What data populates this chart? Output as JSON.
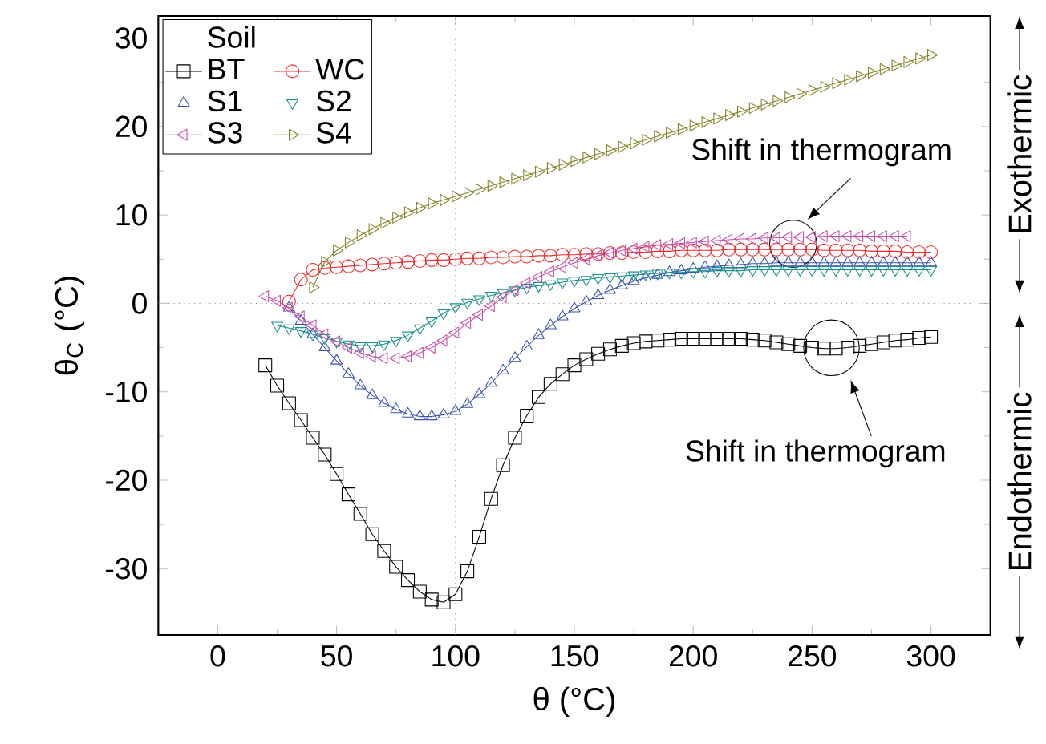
{
  "chart_data": {
    "type": "line",
    "xlabel": "θ (°C)",
    "ylabel": "θ$_{C}$ (°C)",
    "legend_title": "Soil",
    "xlim": [
      -25,
      325
    ],
    "ylim": [
      -37.5,
      32.5
    ],
    "xticks": [
      0,
      50,
      100,
      150,
      200,
      250,
      300
    ],
    "yticks": [
      -30,
      -20,
      -10,
      0,
      10,
      20,
      30
    ],
    "legend": "top left",
    "line_style": "solid",
    "series": [
      {
        "name": "BT",
        "color": "#000000",
        "marker": "square",
        "x": [
          20,
          25,
          30,
          35,
          40,
          45,
          50,
          55,
          60,
          65,
          70,
          75,
          80,
          85,
          90,
          95,
          100,
          105,
          110,
          115,
          120,
          125,
          130,
          135,
          140,
          145,
          150,
          155,
          160,
          165,
          170,
          175,
          180,
          185,
          190,
          195,
          200,
          205,
          210,
          215,
          220,
          225,
          230,
          235,
          240,
          245,
          250,
          255,
          260,
          265,
          270,
          275,
          280,
          285,
          290,
          295,
          300
        ],
        "values": [
          -7,
          -9.3,
          -11.3,
          -13.2,
          -15.2,
          -17.1,
          -19.3,
          -21.6,
          -23.8,
          -26.1,
          -28,
          -29.8,
          -31.3,
          -32.6,
          -33.5,
          -33.8,
          -32.9,
          -30.3,
          -26.4,
          -22.1,
          -18.3,
          -15.2,
          -12.7,
          -10.6,
          -9.1,
          -8,
          -7,
          -6.3,
          -5.7,
          -5.2,
          -4.8,
          -4.5,
          -4.3,
          -4.2,
          -4.1,
          -4,
          -4,
          -4,
          -4,
          -4,
          -4,
          -4.1,
          -4.2,
          -4.4,
          -4.6,
          -4.8,
          -5,
          -5.1,
          -5.1,
          -5,
          -4.8,
          -4.6,
          -4.4,
          -4.2,
          -4.1,
          -3.9,
          -3.8
        ]
      },
      {
        "name": "WC",
        "color": "#ee2a2a",
        "marker": "circle",
        "x": [
          30,
          35,
          40,
          45,
          50,
          55,
          60,
          65,
          70,
          75,
          80,
          85,
          90,
          95,
          100,
          105,
          110,
          115,
          120,
          125,
          130,
          135,
          140,
          145,
          150,
          155,
          160,
          165,
          170,
          175,
          180,
          185,
          190,
          195,
          200,
          205,
          210,
          215,
          220,
          225,
          230,
          235,
          240,
          245,
          250,
          255,
          260,
          265,
          270,
          275,
          280,
          285,
          290,
          295,
          300
        ],
        "values": [
          0.2,
          2.7,
          3.8,
          4,
          4.1,
          4.2,
          4.3,
          4.4,
          4.5,
          4.6,
          4.7,
          4.8,
          4.9,
          4.9,
          5,
          5.1,
          5.1,
          5.2,
          5.2,
          5.3,
          5.3,
          5.4,
          5.4,
          5.5,
          5.5,
          5.6,
          5.6,
          5.7,
          5.7,
          5.8,
          5.8,
          5.9,
          5.9,
          6,
          6,
          6,
          6,
          6.1,
          6.1,
          6.1,
          6.1,
          6.1,
          6.1,
          6.1,
          6.1,
          6,
          6,
          6,
          6,
          5.9,
          5.9,
          5.9,
          5.8,
          5.8,
          5.8
        ]
      },
      {
        "name": "S1",
        "color": "#3953b4",
        "marker": "triangle",
        "x": [
          30,
          35,
          40,
          45,
          50,
          55,
          60,
          65,
          70,
          75,
          80,
          85,
          90,
          95,
          100,
          105,
          110,
          115,
          120,
          125,
          130,
          135,
          140,
          145,
          150,
          155,
          160,
          165,
          170,
          175,
          180,
          185,
          190,
          195,
          200,
          205,
          210,
          215,
          220,
          225,
          230,
          235,
          240,
          245,
          250,
          255,
          260,
          265,
          270,
          275,
          280,
          285,
          290,
          295,
          300
        ],
        "values": [
          -0.5,
          -2,
          -3.5,
          -5,
          -6.5,
          -8,
          -9.3,
          -10.4,
          -11.3,
          -12,
          -12.5,
          -12.8,
          -12.8,
          -12.6,
          -12.2,
          -11.4,
          -10.3,
          -9,
          -7.6,
          -6.2,
          -4.9,
          -3.6,
          -2.5,
          -1.5,
          -0.6,
          0.2,
          0.9,
          1.5,
          2,
          2.5,
          2.9,
          3.2,
          3.5,
          3.7,
          3.9,
          4.1,
          4.2,
          4.3,
          4.4,
          4.5,
          4.5,
          4.6,
          4.6,
          4.6,
          4.6,
          4.6,
          4.6,
          4.6,
          4.6,
          4.6,
          4.6,
          4.6,
          4.6,
          4.6,
          4.6
        ]
      },
      {
        "name": "S2",
        "color": "#16908c",
        "marker": "triangle-down",
        "x": [
          25,
          30,
          35,
          40,
          45,
          50,
          55,
          60,
          65,
          70,
          75,
          80,
          85,
          90,
          95,
          100,
          105,
          110,
          115,
          120,
          125,
          130,
          135,
          140,
          145,
          150,
          155,
          160,
          165,
          170,
          175,
          180,
          185,
          190,
          195,
          200,
          205,
          210,
          215,
          220,
          225,
          230,
          235,
          240,
          245,
          250,
          255,
          260,
          265,
          270,
          275,
          280,
          285,
          290,
          295,
          300
        ],
        "values": [
          -2.5,
          -2.8,
          -3.1,
          -3.5,
          -3.9,
          -4.3,
          -4.6,
          -4.8,
          -4.8,
          -4.6,
          -4.2,
          -3.6,
          -2.8,
          -2,
          -1.1,
          -0.4,
          0.1,
          0.5,
          0.9,
          1.2,
          1.5,
          1.8,
          2,
          2.2,
          2.4,
          2.6,
          2.7,
          2.9,
          3,
          3.1,
          3.2,
          3.3,
          3.4,
          3.5,
          3.5,
          3.6,
          3.6,
          3.7,
          3.7,
          3.7,
          3.8,
          3.8,
          3.8,
          3.8,
          3.8,
          3.8,
          3.8,
          3.8,
          3.8,
          3.8,
          3.8,
          3.8,
          3.8,
          3.8,
          3.8,
          3.8
        ]
      },
      {
        "name": "S3",
        "color": "#c84ea8",
        "marker": "triangle-left",
        "x": [
          20,
          25,
          30,
          35,
          40,
          45,
          50,
          55,
          60,
          65,
          70,
          75,
          80,
          85,
          90,
          95,
          100,
          105,
          110,
          115,
          120,
          125,
          130,
          135,
          140,
          145,
          150,
          155,
          160,
          165,
          170,
          175,
          180,
          185,
          190,
          195,
          200,
          205,
          210,
          215,
          220,
          225,
          230,
          235,
          240,
          245,
          250,
          255,
          260,
          265,
          270,
          275,
          280,
          285,
          290
        ],
        "values": [
          0.8,
          0.3,
          -0.5,
          -1.5,
          -2.5,
          -3.5,
          -4.3,
          -5,
          -5.6,
          -6,
          -6.2,
          -6.2,
          -6,
          -5.6,
          -5,
          -4.2,
          -3.3,
          -2.2,
          -1.3,
          -0.3,
          0.7,
          1.5,
          2.3,
          3,
          3.6,
          4.1,
          4.6,
          5,
          5.4,
          5.7,
          6,
          6.2,
          6.4,
          6.6,
          6.7,
          6.8,
          6.9,
          7,
          7.1,
          7.2,
          7.3,
          7.3,
          7.4,
          7.4,
          7.5,
          7.5,
          7.5,
          7.6,
          7.6,
          7.6,
          7.6,
          7.6,
          7.6,
          7.6,
          7.6
        ]
      },
      {
        "name": "S4",
        "color": "#838327",
        "marker": "triangle-right",
        "x": [
          40,
          45,
          50,
          55,
          60,
          65,
          70,
          75,
          80,
          85,
          90,
          95,
          100,
          105,
          110,
          115,
          120,
          125,
          130,
          135,
          140,
          145,
          150,
          155,
          160,
          165,
          170,
          175,
          180,
          185,
          190,
          195,
          200,
          205,
          210,
          215,
          220,
          225,
          230,
          235,
          240,
          245,
          250,
          255,
          260,
          265,
          270,
          275,
          280,
          285,
          290,
          295,
          300
        ],
        "values": [
          1.8,
          4.7,
          6,
          6.9,
          7.7,
          8.4,
          9.1,
          9.7,
          10.3,
          10.8,
          11.3,
          11.7,
          12.1,
          12.5,
          12.9,
          13.3,
          13.7,
          14.1,
          14.5,
          14.9,
          15.3,
          15.7,
          16.1,
          16.5,
          16.9,
          17.3,
          17.7,
          18.1,
          18.5,
          18.9,
          19.3,
          19.7,
          20.1,
          20.5,
          20.9,
          21.3,
          21.7,
          22.1,
          22.5,
          22.9,
          23.3,
          23.7,
          24.1,
          24.5,
          24.9,
          25.3,
          25.7,
          26.1,
          26.5,
          26.9,
          27.3,
          27.7,
          28.1
        ]
      }
    ],
    "ref_lines": [
      {
        "axis": "x",
        "value": 100,
        "color": "#808080",
        "line_style": "dotted"
      },
      {
        "axis": "y",
        "value": 0,
        "color": "#808080",
        "line_style": "dotted"
      }
    ],
    "annotations": [
      "Shift in thermogram",
      "Shift in thermogram",
      "Exothermic",
      "Endothermic"
    ]
  }
}
